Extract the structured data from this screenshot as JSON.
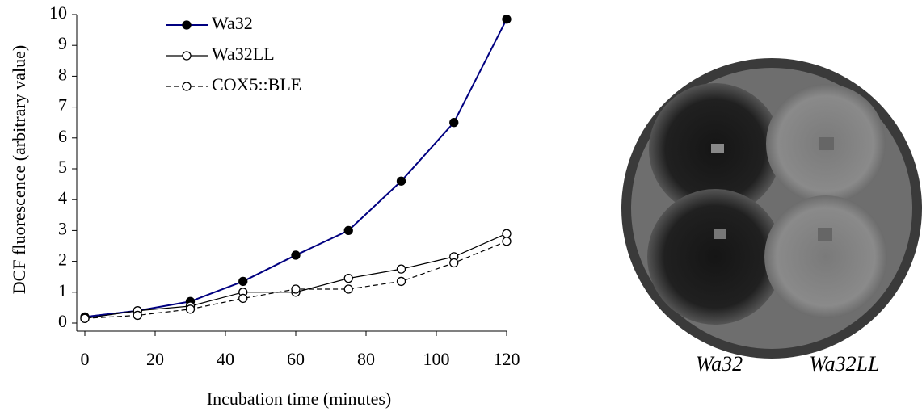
{
  "chart_data": {
    "type": "line",
    "xlabel": "Incubation time (minutes)",
    "ylabel": "DCF fluorescence (arbitrary value)",
    "x": [
      0,
      15,
      30,
      45,
      60,
      75,
      90,
      105,
      120
    ],
    "series": [
      {
        "name": "Wa32",
        "color": "#000080",
        "marker": "filled",
        "dash": false,
        "values": [
          0.2,
          0.4,
          0.7,
          1.35,
          2.2,
          3.0,
          4.6,
          6.5,
          9.85
        ]
      },
      {
        "name": "Wa32LL",
        "color": "#000000",
        "marker": "open",
        "dash": false,
        "values": [
          0.15,
          0.4,
          0.55,
          1.0,
          1.0,
          1.45,
          1.75,
          2.15,
          2.9
        ]
      },
      {
        "name": "COX5::BLE",
        "color": "#000000",
        "marker": "open",
        "dash": true,
        "values": [
          0.15,
          0.25,
          0.45,
          0.8,
          1.1,
          1.1,
          1.35,
          1.95,
          2.65
        ]
      }
    ],
    "xlim": [
      0,
      120
    ],
    "xticks": [
      0,
      20,
      40,
      60,
      80,
      100,
      120
    ],
    "ylim": [
      0,
      10
    ],
    "yticks": [
      0,
      1,
      2,
      3,
      4,
      5,
      6,
      7,
      8,
      9,
      10
    ],
    "legend": "upper-left"
  },
  "photo": {
    "labels": [
      "Wa32",
      "Wa32LL"
    ]
  }
}
